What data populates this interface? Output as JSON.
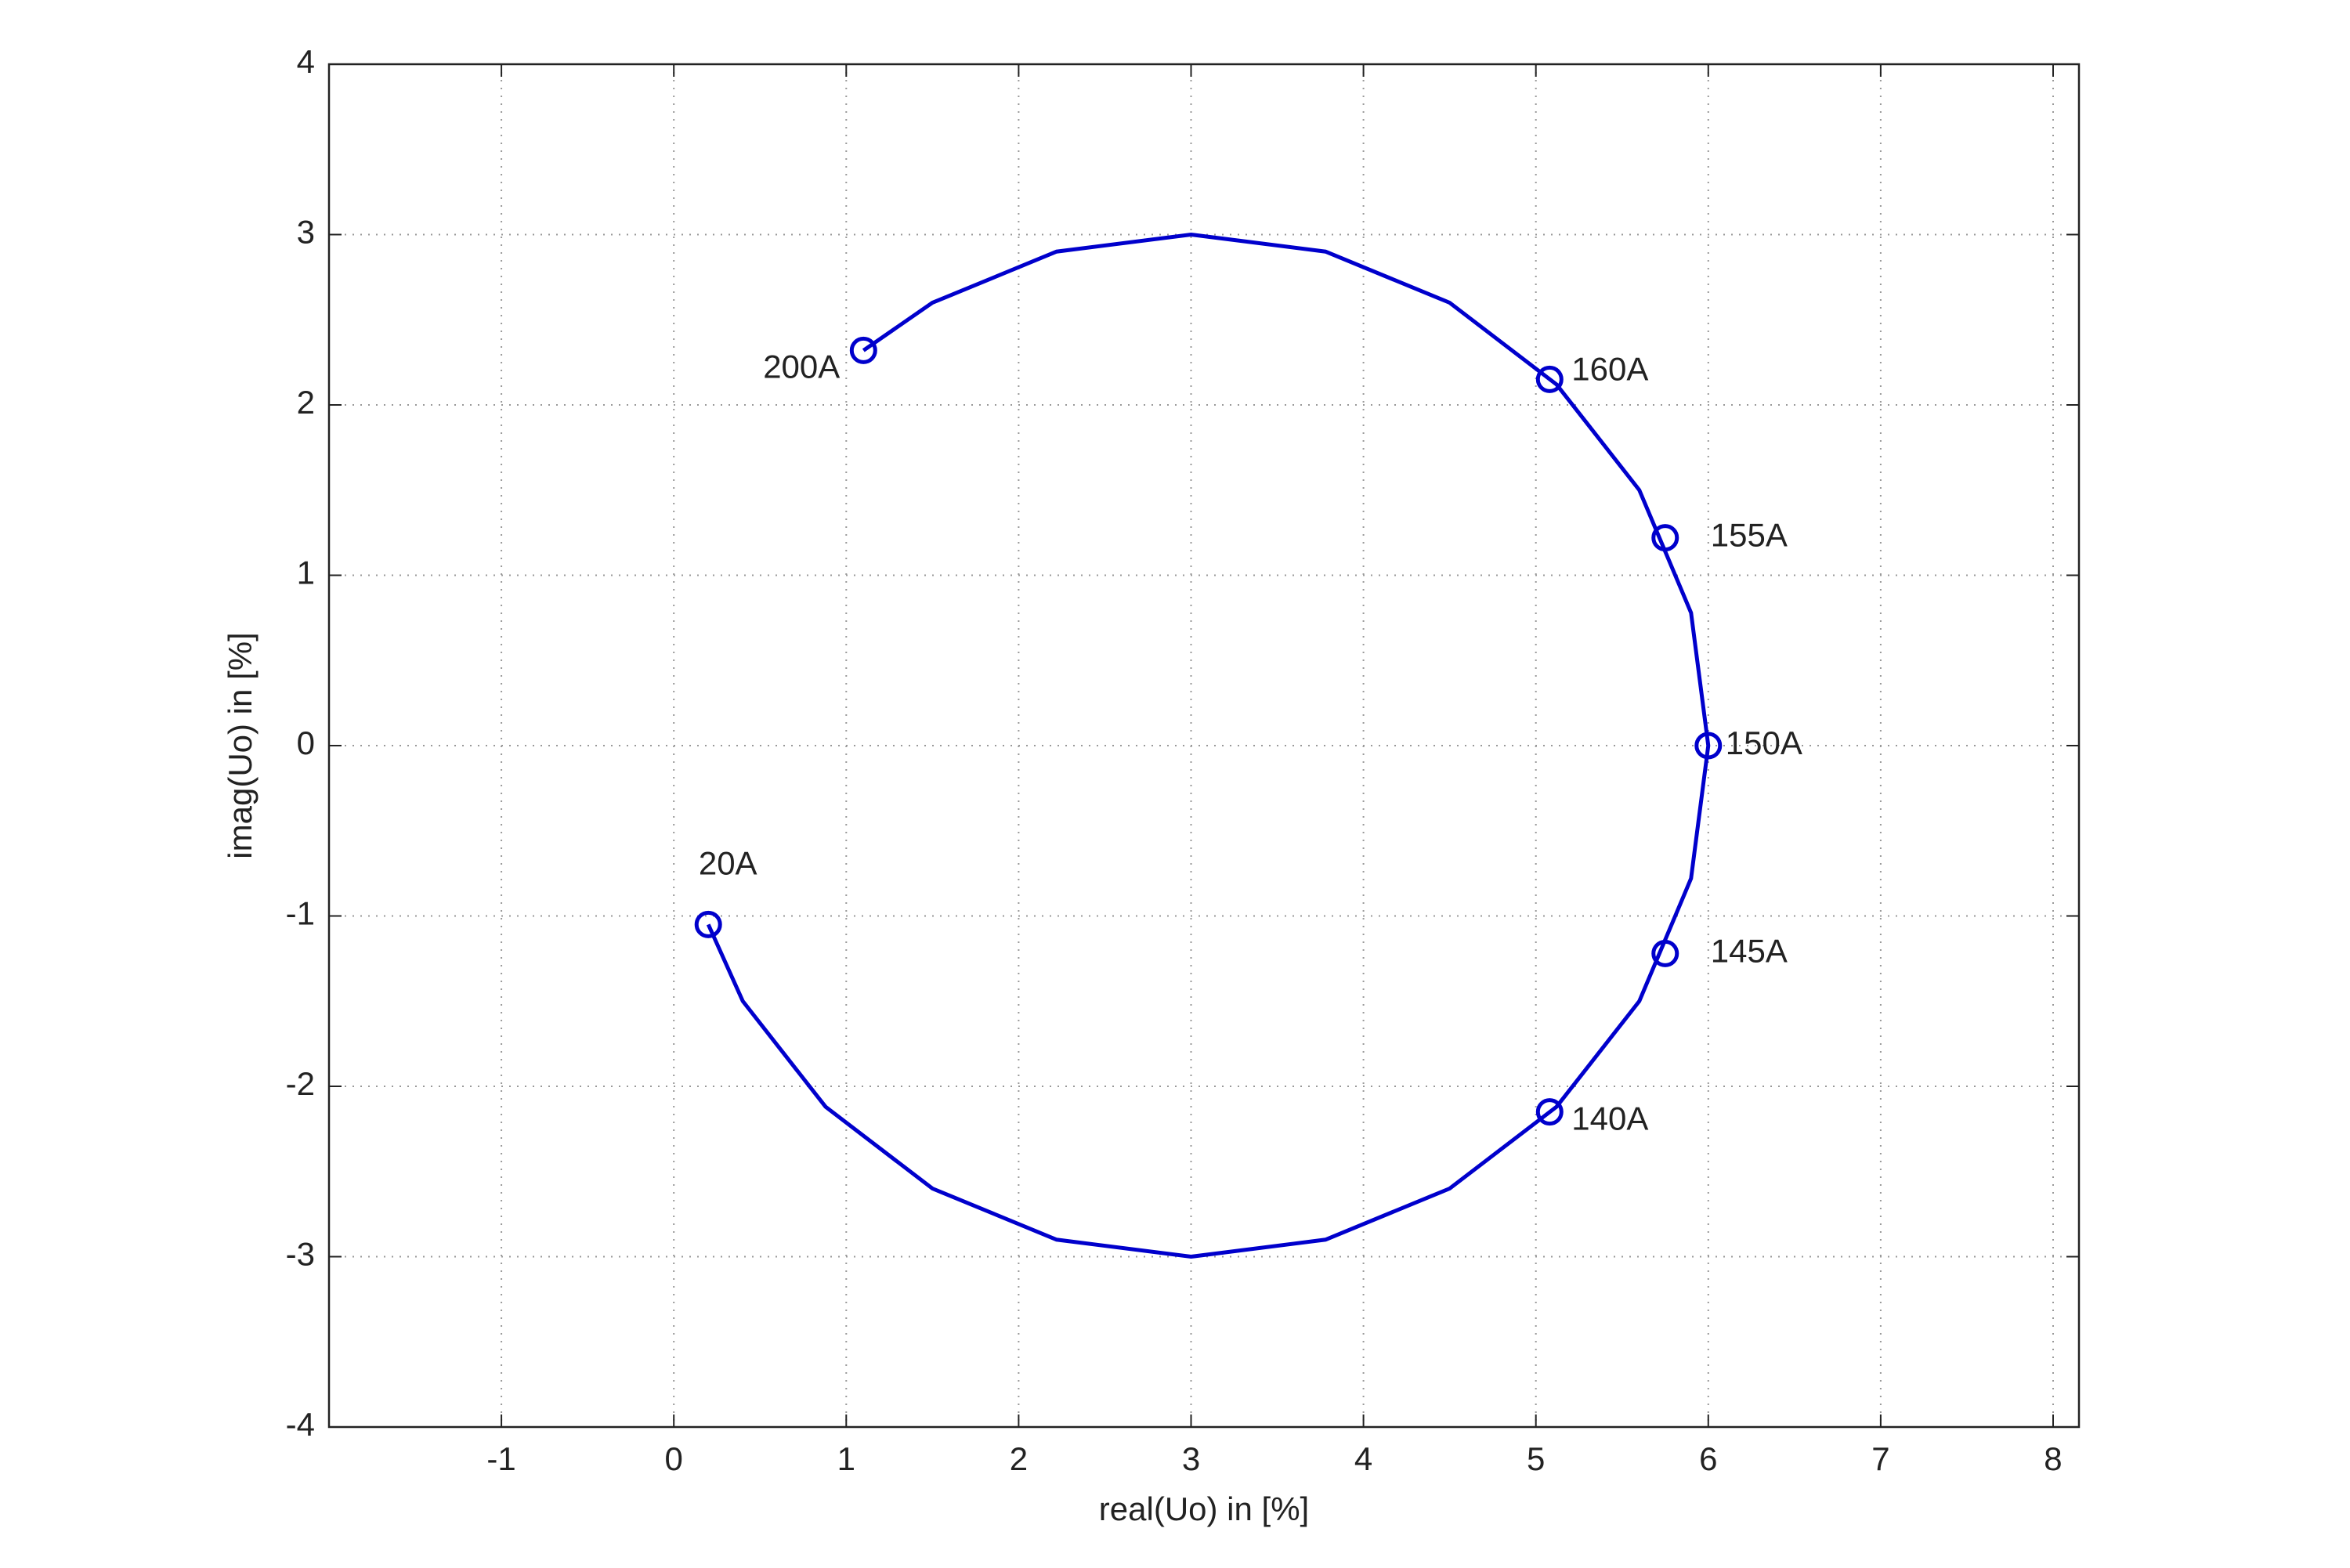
{
  "chart_data": {
    "type": "line",
    "xlabel": "real(Uo) in [%]",
    "ylabel": "imag(Uo) in [%]",
    "xlim": [
      -2,
      8.15
    ],
    "ylim": [
      -4,
      4
    ],
    "xticks": [
      -1,
      0,
      1,
      2,
      3,
      4,
      5,
      6,
      7,
      8
    ],
    "yticks": [
      -4,
      -3,
      -2,
      -1,
      0,
      1,
      2,
      3,
      4
    ],
    "grid": true,
    "line": {
      "color": "#0000cc",
      "x": [
        0.2,
        0.4,
        0.88,
        1.5,
        2.22,
        3,
        3.78,
        4.5,
        5.12,
        5.6,
        5.9,
        6,
        5.9,
        5.6,
        5.12,
        4.5,
        3.78,
        3,
        2.22,
        1.5,
        1.1
      ],
      "y": [
        -1.05,
        -1.5,
        -2.12,
        -2.6,
        -2.9,
        -3,
        -2.9,
        -2.6,
        -2.12,
        -1.5,
        -0.78,
        0,
        0.78,
        1.5,
        2.12,
        2.6,
        2.9,
        3,
        2.9,
        2.6,
        2.32
      ]
    },
    "markers": {
      "color": "#0000cc",
      "x": [
        0.2,
        5.08,
        5.75,
        6,
        5.75,
        5.08,
        1.1
      ],
      "y": [
        -1.05,
        -2.15,
        -1.22,
        0,
        1.22,
        2.15,
        2.32
      ],
      "labels": [
        "20A",
        "140A",
        "145A",
        "150A",
        "155A",
        "160A",
        "200A"
      ]
    }
  }
}
